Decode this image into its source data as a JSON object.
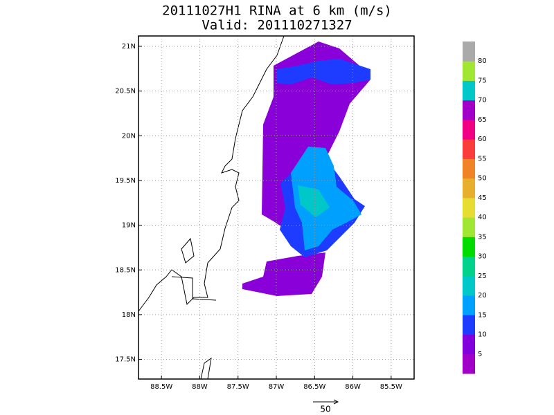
{
  "map": {
    "title": "20111027H1  RINA at 6 km (m/s)",
    "subtitle": "Valid: 201110271327",
    "xlim": [
      -88.8,
      -85.2
    ],
    "ylim": [
      17.28,
      21.116
    ],
    "xticks": [
      {
        "value": -88.5,
        "label": "88.5W"
      },
      {
        "value": -88,
        "label": "88W"
      },
      {
        "value": -87.5,
        "label": "87.5W"
      },
      {
        "value": -87,
        "label": "87W"
      },
      {
        "value": -86.5,
        "label": "86.5W"
      },
      {
        "value": -86,
        "label": "86W"
      },
      {
        "value": -85.5,
        "label": "85.5W"
      }
    ],
    "yticks": [
      {
        "value": 17.5,
        "label": "17.5N"
      },
      {
        "value": 18,
        "label": "18N"
      },
      {
        "value": 18.5,
        "label": "18.5N"
      },
      {
        "value": 19,
        "label": "19N"
      },
      {
        "value": 19.5,
        "label": "19.5N"
      },
      {
        "value": 20,
        "label": "20N"
      },
      {
        "value": 20.5,
        "label": "20.5N"
      },
      {
        "value": 21,
        "label": "21N"
      }
    ],
    "grid": true,
    "colorbar": {
      "levels": [
        5,
        10,
        15,
        20,
        25,
        30,
        35,
        40,
        45,
        50,
        55,
        60,
        65,
        70,
        75,
        80
      ],
      "colors": [
        "#a000c8",
        "#8200dc",
        "#1e3cff",
        "#00a0ff",
        "#00c8c8",
        "#00d28c",
        "#00dc00",
        "#a0e632",
        "#e6dc32",
        "#e6af2d",
        "#f08228",
        "#fa3c3c",
        "#f00082",
        "#a000c8",
        "#00c8c8",
        "#a0e632",
        "#aaaaaa"
      ]
    },
    "reference_vector": "50"
  }
}
